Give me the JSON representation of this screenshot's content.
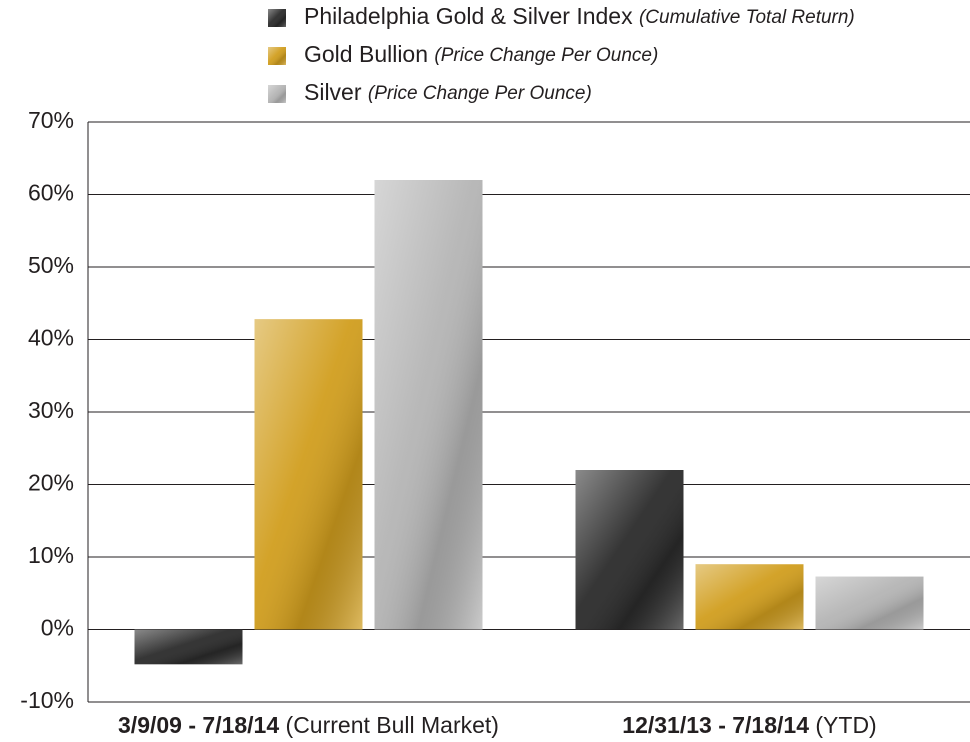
{
  "chart_data": {
    "type": "bar",
    "categories": [
      "3/9/09 - 7/18/14",
      "12/31/13 - 7/18/14"
    ],
    "category_notes": [
      "(Current Bull Market)",
      "(YTD)"
    ],
    "series": [
      {
        "name": "Philadelphia Gold & Silver Index",
        "note": "(Cumulative Total Return)",
        "color": "#2b2b2b",
        "values": [
          -4.8,
          22
        ]
      },
      {
        "name": "Gold Bullion",
        "note": "(Price Change Per Ounce)",
        "color": "#d19e1e",
        "values": [
          42.8,
          9
        ]
      },
      {
        "name": "Silver",
        "note": "(Price Change Per Ounce)",
        "color": "#b5b5b5",
        "values": [
          62,
          7.3
        ]
      }
    ],
    "ylim": [
      -10,
      70
    ],
    "yticks": [
      {
        "value": -10,
        "label": "-10%"
      },
      {
        "value": 0,
        "label": "0%"
      },
      {
        "value": 10,
        "label": "10%"
      },
      {
        "value": 20,
        "label": "20%"
      },
      {
        "value": 30,
        "label": "30%"
      },
      {
        "value": 40,
        "label": "40%"
      },
      {
        "value": 50,
        "label": "50%"
      },
      {
        "value": 60,
        "label": "60%"
      },
      {
        "value": 70,
        "label": "70%"
      }
    ],
    "grid": true
  }
}
